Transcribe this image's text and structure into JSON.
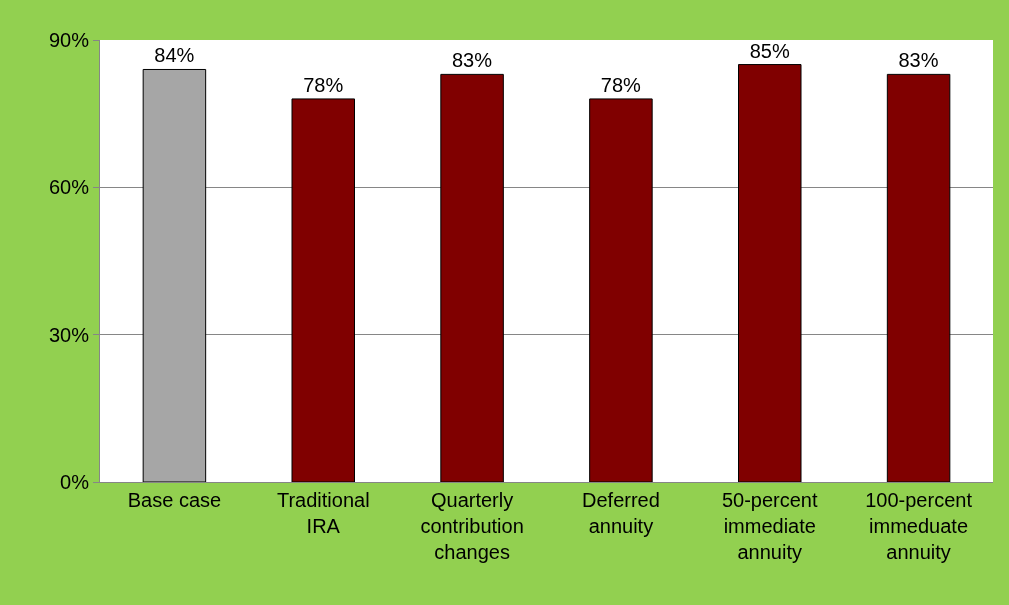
{
  "chart_data": {
    "type": "bar",
    "categories": [
      "Base case",
      "Traditional\nIRA",
      "Quarterly\ncontribution\nchanges",
      "Deferred\nannuity",
      "50-percent\nimmediate\nannuity",
      "100-percent\nimmeduate\nannuity"
    ],
    "values": [
      84,
      78,
      83,
      78,
      85,
      83
    ],
    "colors": [
      "#a6a6a6",
      "#800000",
      "#800000",
      "#800000",
      "#800000",
      "#800000"
    ],
    "value_labels": [
      "84%",
      "78%",
      "83%",
      "78%",
      "85%",
      "83%"
    ],
    "ylim": [
      0,
      90
    ],
    "yticks": [
      {
        "value": 0,
        "label": "0%"
      },
      {
        "value": 30,
        "label": "30%"
      },
      {
        "value": 60,
        "label": "60%"
      },
      {
        "value": 90,
        "label": "90%"
      }
    ],
    "grid": "y"
  }
}
